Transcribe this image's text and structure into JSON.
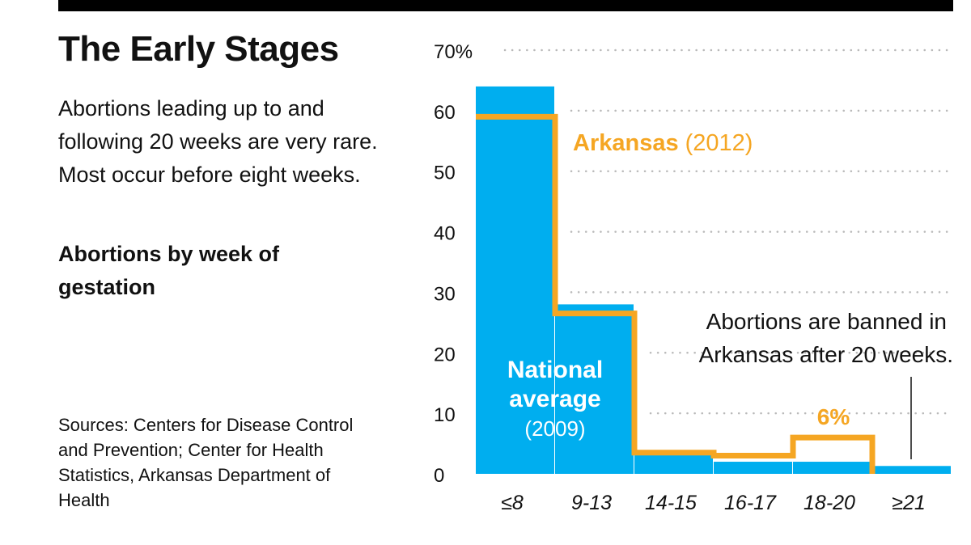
{
  "header": {
    "title": "The Early Stages",
    "description": "Abortions leading up to and following 20 weeks are very rare. Most occur before eight weeks.",
    "subtitle": "Abortions by week of gestation",
    "sources": "Sources: Centers for Disease Control and Prevention; Center for Health Statistics, Arkansas Department of Health"
  },
  "colors": {
    "national": "#00AEEF",
    "arkansas": "#F5A623",
    "grid": "#b9b9b9",
    "topbar": "#000000"
  },
  "chart_data": {
    "type": "bar",
    "categories": [
      "≤8",
      "9-13",
      "14-15",
      "16-17",
      "18-20",
      "≥21"
    ],
    "series": [
      {
        "name": "National average",
        "values": [
          64,
          28,
          3.5,
          2,
          2,
          1.3
        ]
      },
      {
        "name": "Arkansas",
        "values": [
          59,
          26.5,
          3.5,
          3,
          6,
          0
        ]
      }
    ],
    "ylim": [
      0,
      70
    ],
    "yticks": [
      "0",
      "10",
      "20",
      "30",
      "40",
      "50",
      "60",
      "70%"
    ],
    "grid": true,
    "labels": {
      "national_name": "National",
      "national_name_2": "average",
      "national_year": "(2009)",
      "arkansas_name": "Arkansas",
      "arkansas_year": "(2012)",
      "peak_value": "6%",
      "ban_note_line1": "Abortions are banned in",
      "ban_note_line2": "Arkansas after 20 weeks."
    }
  }
}
